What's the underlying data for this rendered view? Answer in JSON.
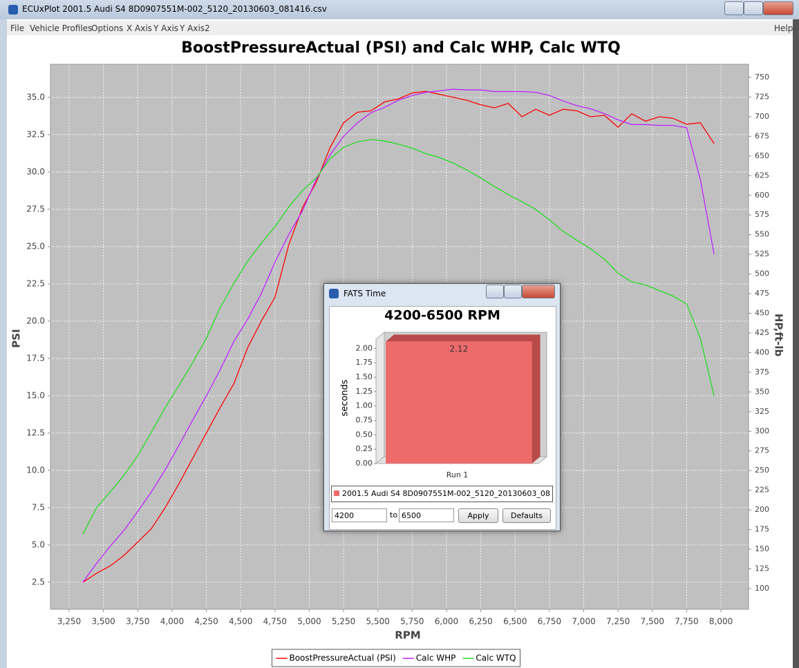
{
  "window": {
    "title": "ECUxPlot 2001.5 Audi S4 8D0907551M-002_5120_20130603_081416.csv",
    "menu": [
      "File",
      "Vehicle Profiles",
      "Options",
      "X Axis",
      "Y Axis",
      "Y Axis2"
    ],
    "help": "Help"
  },
  "dialog": {
    "title": "FATS Time",
    "from": "4200",
    "to_label": "to",
    "to": "6500",
    "buttons": [
      "Apply",
      "Defaults"
    ]
  },
  "chart_data": [
    {
      "type": "line",
      "title": "BoostPressureActual (PSI) and Calc WHP, Calc WTQ",
      "x_label": "RPM",
      "y_label": "PSI",
      "y2_label": "HP,ft-lb",
      "grid": true,
      "legend": "bottom",
      "x": [
        3350,
        3450,
        3550,
        3650,
        3750,
        3850,
        3950,
        4050,
        4150,
        4250,
        4350,
        4450,
        4550,
        4650,
        4750,
        4850,
        4950,
        5050,
        5150,
        5250,
        5350,
        5450,
        5550,
        5650,
        5750,
        5850,
        5950,
        6050,
        6150,
        6250,
        6350,
        6450,
        6550,
        6650,
        6750,
        6850,
        6950,
        7050,
        7150,
        7250,
        7350,
        7450,
        7550,
        7650,
        7750,
        7850,
        7950
      ],
      "xlim": [
        3114,
        8201
      ],
      "xticks": [
        {
          "value": 3250,
          "label": "3,250"
        },
        {
          "value": 3500,
          "label": "3,500"
        },
        {
          "value": 3750,
          "label": "3,750"
        },
        {
          "value": 4000,
          "label": "4,000"
        },
        {
          "value": 4250,
          "label": "4,250"
        },
        {
          "value": 4500,
          "label": "4,500"
        },
        {
          "value": 4750,
          "label": "4,750"
        },
        {
          "value": 5000,
          "label": "5,000"
        },
        {
          "value": 5250,
          "label": "5,250"
        },
        {
          "value": 5500,
          "label": "5,500"
        },
        {
          "value": 5750,
          "label": "5,750"
        },
        {
          "value": 6000,
          "label": "6,000"
        },
        {
          "value": 6250,
          "label": "6,250"
        },
        {
          "value": 6500,
          "label": "6,500"
        },
        {
          "value": 6750,
          "label": "6,750"
        },
        {
          "value": 7000,
          "label": "7,000"
        },
        {
          "value": 7250,
          "label": "7,250"
        },
        {
          "value": 7500,
          "label": "7,500"
        },
        {
          "value": 7750,
          "label": "7,750"
        },
        {
          "value": 8000,
          "label": "8,000"
        }
      ],
      "ylim": [
        0.69,
        37.22
      ],
      "yticks": [
        2.5,
        {
          "value": 5,
          "label": "5.0"
        },
        7.5,
        {
          "value": 10,
          "label": "10.0"
        },
        12.5,
        {
          "value": 15,
          "label": "15.0"
        },
        17.5,
        {
          "value": 20,
          "label": "20.0"
        },
        22.5,
        {
          "value": 25,
          "label": "25.0"
        },
        27.5,
        {
          "value": 30,
          "label": "30.0"
        },
        32.5,
        {
          "value": 35,
          "label": "35.0"
        }
      ],
      "y2lim": [
        73.6,
        766.7
      ],
      "y2ticks": [
        100,
        125,
        150,
        175,
        200,
        225,
        250,
        275,
        300,
        325,
        350,
        375,
        400,
        425,
        450,
        475,
        500,
        525,
        550,
        575,
        600,
        625,
        650,
        675,
        700,
        725,
        750
      ],
      "series": [
        {
          "name": "BoostPressureActual (PSI)",
          "color": "#ff0000",
          "axis": "y",
          "values": [
            2.5,
            3.1,
            3.6,
            4.3,
            5.2,
            6.1,
            7.5,
            9.1,
            10.8,
            12.5,
            14.2,
            15.8,
            18.2,
            20.0,
            21.6,
            25.1,
            27.6,
            29.3,
            31.6,
            33.3,
            34.0,
            34.1,
            34.7,
            34.9,
            35.3,
            35.4,
            35.2,
            35.0,
            34.8,
            34.5,
            34.3,
            34.6,
            33.7,
            34.2,
            33.8,
            34.2,
            34.1,
            33.7,
            33.8,
            33.0,
            33.9,
            33.4,
            33.7,
            33.6,
            33.2,
            33.3,
            31.9
          ]
        },
        {
          "name": "Calc WHP",
          "color": "#bb22ff",
          "axis": "y2",
          "values": [
            108,
            132,
            154,
            174,
            198,
            223,
            251,
            282,
            314,
            345,
            378,
            414,
            442,
            475,
            515,
            550,
            580,
            620,
            651,
            675,
            692,
            705,
            712,
            721,
            727,
            731,
            733,
            735,
            734,
            734,
            732,
            732,
            732,
            731,
            727,
            720,
            714,
            710,
            704,
            696,
            690,
            690,
            689,
            689,
            686,
            620,
            525
          ]
        },
        {
          "name": "Calc WTQ",
          "color": "#22dd22",
          "axis": "y2",
          "values": [
            169,
            203,
            223,
            244,
            269,
            299,
            330,
            358,
            387,
            418,
            457,
            488,
            516,
            539,
            560,
            585,
            606,
            622,
            646,
            661,
            668,
            671,
            669,
            665,
            660,
            653,
            648,
            641,
            632,
            622,
            611,
            601,
            592,
            582,
            569,
            554,
            543,
            532,
            519,
            501,
            490,
            486,
            479,
            472,
            462,
            418,
            345
          ]
        }
      ]
    },
    {
      "type": "bar",
      "title": "4200-6500 RPM",
      "y_label": "seconds",
      "categories": [
        "Run 1"
      ],
      "ylim": [
        0,
        2.28
      ],
      "yticks": [
        {
          "value": 0,
          "label": "0.00"
        },
        {
          "value": 0.25,
          "label": "0.25"
        },
        {
          "value": 0.5,
          "label": "0.50"
        },
        {
          "value": 0.75,
          "label": "0.75"
        },
        {
          "value": 1,
          "label": "1.00"
        },
        {
          "value": 1.25,
          "label": "1.25"
        },
        {
          "value": 1.5,
          "label": "1.50"
        },
        {
          "value": 1.75,
          "label": "1.75"
        },
        {
          "value": 2,
          "label": "2.00"
        }
      ],
      "series": [
        {
          "name": "2001.5 Audi S4 8D0907551M-002_5120_20130603_08",
          "color": "#ee6b6b",
          "values": [
            2.12
          ]
        }
      ]
    }
  ]
}
